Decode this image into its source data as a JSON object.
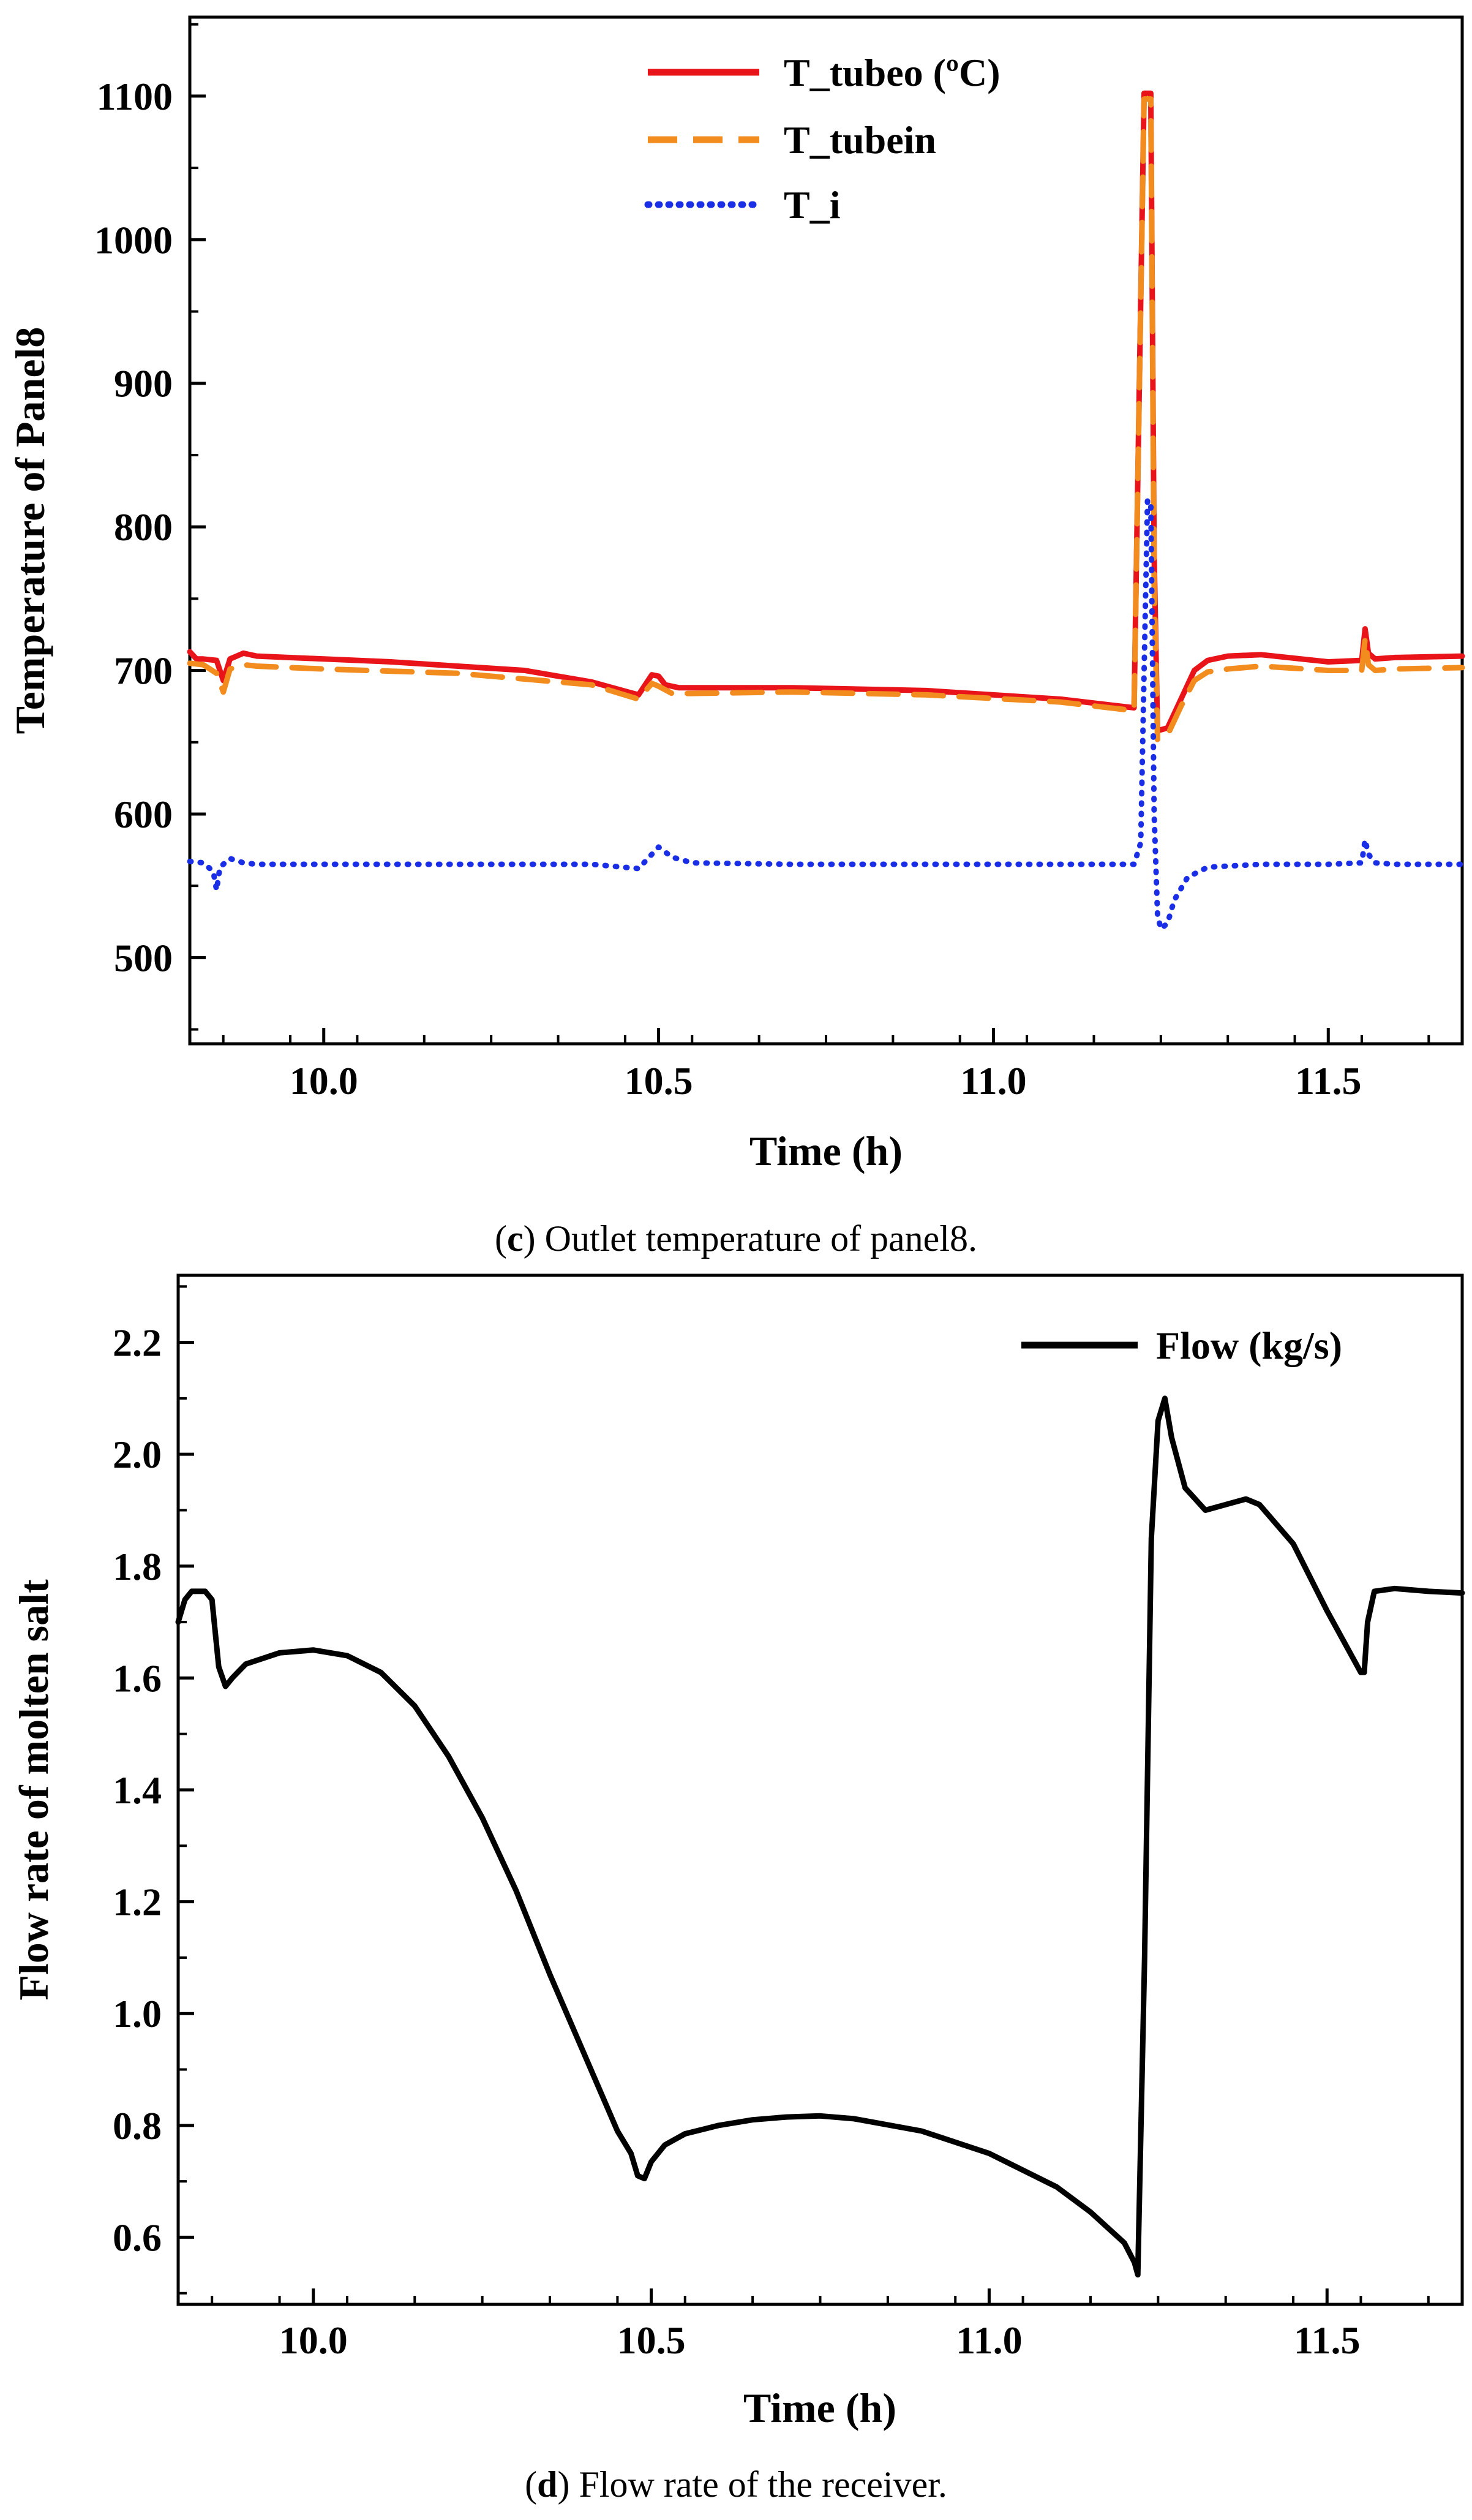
{
  "chart_data": [
    {
      "type": "line",
      "title": "",
      "xlabel": "Time (h)",
      "ylabel": "Temperature of Panel8",
      "xlim": [
        9.8,
        11.7
      ],
      "ylim": [
        440,
        1155
      ],
      "xticks": [
        10.0,
        10.5,
        11.0,
        11.5
      ],
      "xtick_labels": [
        "10.0",
        "10.5",
        "11.0",
        "11.5"
      ],
      "yticks": [
        500,
        600,
        700,
        800,
        900,
        1000,
        1100
      ],
      "ytick_labels": [
        "500",
        "600",
        "700",
        "800",
        "900",
        "1000",
        "1100"
      ],
      "legend_position": "top-center",
      "caption": {
        "letter": "c",
        "text": " Outlet temperature of panel8."
      },
      "series": [
        {
          "name": "T_tubeo (ºC)",
          "color": "#e8141a",
          "style": "solid",
          "x": [
            9.8,
            9.81,
            9.82,
            9.84,
            9.85,
            9.86,
            9.88,
            9.9,
            10.0,
            10.1,
            10.2,
            10.3,
            10.4,
            10.47,
            10.49,
            10.5,
            10.51,
            10.53,
            10.55,
            10.7,
            10.9,
            11.1,
            11.21,
            11.225,
            11.235,
            11.24,
            11.245,
            11.26,
            11.28,
            11.3,
            11.32,
            11.35,
            11.4,
            11.5,
            11.55,
            11.555,
            11.56,
            11.57,
            11.6,
            11.7
          ],
          "y": [
            713,
            708,
            708,
            707,
            693,
            708,
            712,
            710,
            708,
            706,
            703,
            700,
            692,
            683,
            697,
            696,
            690,
            688,
            688,
            688,
            686,
            680,
            674,
            1102,
            1102,
            780,
            658,
            660,
            680,
            700,
            707,
            710,
            711,
            706,
            707,
            729,
            712,
            708,
            709,
            710
          ]
        },
        {
          "name": "T_tubein",
          "color": "#f28c1e",
          "style": "dashed",
          "x": [
            9.8,
            9.82,
            9.84,
            9.85,
            9.86,
            9.88,
            9.9,
            10.0,
            10.2,
            10.4,
            10.47,
            10.49,
            10.5,
            10.52,
            10.55,
            10.7,
            10.9,
            11.1,
            11.21,
            11.225,
            11.235,
            11.24,
            11.245,
            11.26,
            11.28,
            11.3,
            11.32,
            11.35,
            11.4,
            11.5,
            11.55,
            11.555,
            11.56,
            11.57,
            11.6,
            11.7
          ],
          "y": [
            705,
            704,
            698,
            685,
            701,
            704,
            703,
            701,
            698,
            690,
            680,
            691,
            689,
            684,
            684,
            685,
            683,
            678,
            672,
            1098,
            1098,
            760,
            652,
            655,
            675,
            693,
            699,
            701,
            703,
            700,
            700,
            722,
            704,
            700,
            701,
            702
          ]
        },
        {
          "name": "T_i",
          "color": "#1a2ee6",
          "style": "dotted",
          "x": [
            9.8,
            9.82,
            9.835,
            9.84,
            9.845,
            9.86,
            9.88,
            9.9,
            10.0,
            10.2,
            10.4,
            10.47,
            10.48,
            10.5,
            10.52,
            10.55,
            10.7,
            10.9,
            11.1,
            11.21,
            11.22,
            11.23,
            11.235,
            11.24,
            11.245,
            11.25,
            11.26,
            11.27,
            11.29,
            11.32,
            11.4,
            11.5,
            11.55,
            11.555,
            11.56,
            11.57,
            11.6,
            11.7
          ],
          "y": [
            567,
            566,
            560,
            547,
            563,
            569,
            566,
            565,
            565,
            565,
            565,
            562,
            567,
            577,
            570,
            566,
            565,
            565,
            565,
            565,
            580,
            818,
            818,
            600,
            530,
            520,
            524,
            540,
            556,
            563,
            565,
            565,
            566,
            582,
            572,
            566,
            565,
            565
          ]
        }
      ]
    },
    {
      "type": "line",
      "title": "",
      "xlabel": "Time (h)",
      "ylabel": "Flow rate of molten salt",
      "xlim": [
        9.8,
        11.7
      ],
      "ylim": [
        0.48,
        2.32
      ],
      "xticks": [
        10.0,
        10.5,
        11.0,
        11.5
      ],
      "xtick_labels": [
        "10.0",
        "10.5",
        "11.0",
        "11.5"
      ],
      "yticks": [
        0.6,
        0.8,
        1.0,
        1.2,
        1.4,
        1.6,
        1.8,
        2.0,
        2.2
      ],
      "ytick_labels": [
        "0.6",
        "0.8",
        "1.0",
        "1.2",
        "1.4",
        "1.6",
        "1.8",
        "2.0",
        "2.2"
      ],
      "legend_position": "top-right",
      "caption": {
        "letter": "d",
        "text": " Flow rate of the receiver."
      },
      "series": [
        {
          "name": "Flow (kg/s)",
          "color": "#000000",
          "style": "solid",
          "x": [
            9.8,
            9.81,
            9.82,
            9.84,
            9.85,
            9.86,
            9.87,
            9.88,
            9.9,
            9.95,
            10.0,
            10.05,
            10.1,
            10.15,
            10.2,
            10.25,
            10.3,
            10.35,
            10.4,
            10.45,
            10.47,
            10.48,
            10.49,
            10.5,
            10.52,
            10.55,
            10.6,
            10.65,
            10.7,
            10.75,
            10.8,
            10.9,
            11.0,
            11.1,
            11.15,
            11.2,
            11.215,
            11.22,
            11.23,
            11.24,
            11.25,
            11.26,
            11.27,
            11.29,
            11.32,
            11.35,
            11.38,
            11.4,
            11.45,
            11.5,
            11.55,
            11.555,
            11.56,
            11.57,
            11.6,
            11.65,
            11.7
          ],
          "y": [
            1.7,
            1.74,
            1.755,
            1.755,
            1.74,
            1.62,
            1.585,
            1.6,
            1.625,
            1.645,
            1.65,
            1.64,
            1.61,
            1.55,
            1.46,
            1.35,
            1.22,
            1.07,
            0.93,
            0.79,
            0.75,
            0.71,
            0.705,
            0.735,
            0.765,
            0.785,
            0.8,
            0.81,
            0.815,
            0.817,
            0.812,
            0.79,
            0.75,
            0.69,
            0.645,
            0.59,
            0.555,
            0.533,
            1.1,
            1.85,
            2.06,
            2.1,
            2.03,
            1.94,
            1.9,
            1.91,
            1.92,
            1.91,
            1.84,
            1.72,
            1.61,
            1.61,
            1.7,
            1.755,
            1.76,
            1.755,
            1.752
          ]
        }
      ]
    }
  ]
}
